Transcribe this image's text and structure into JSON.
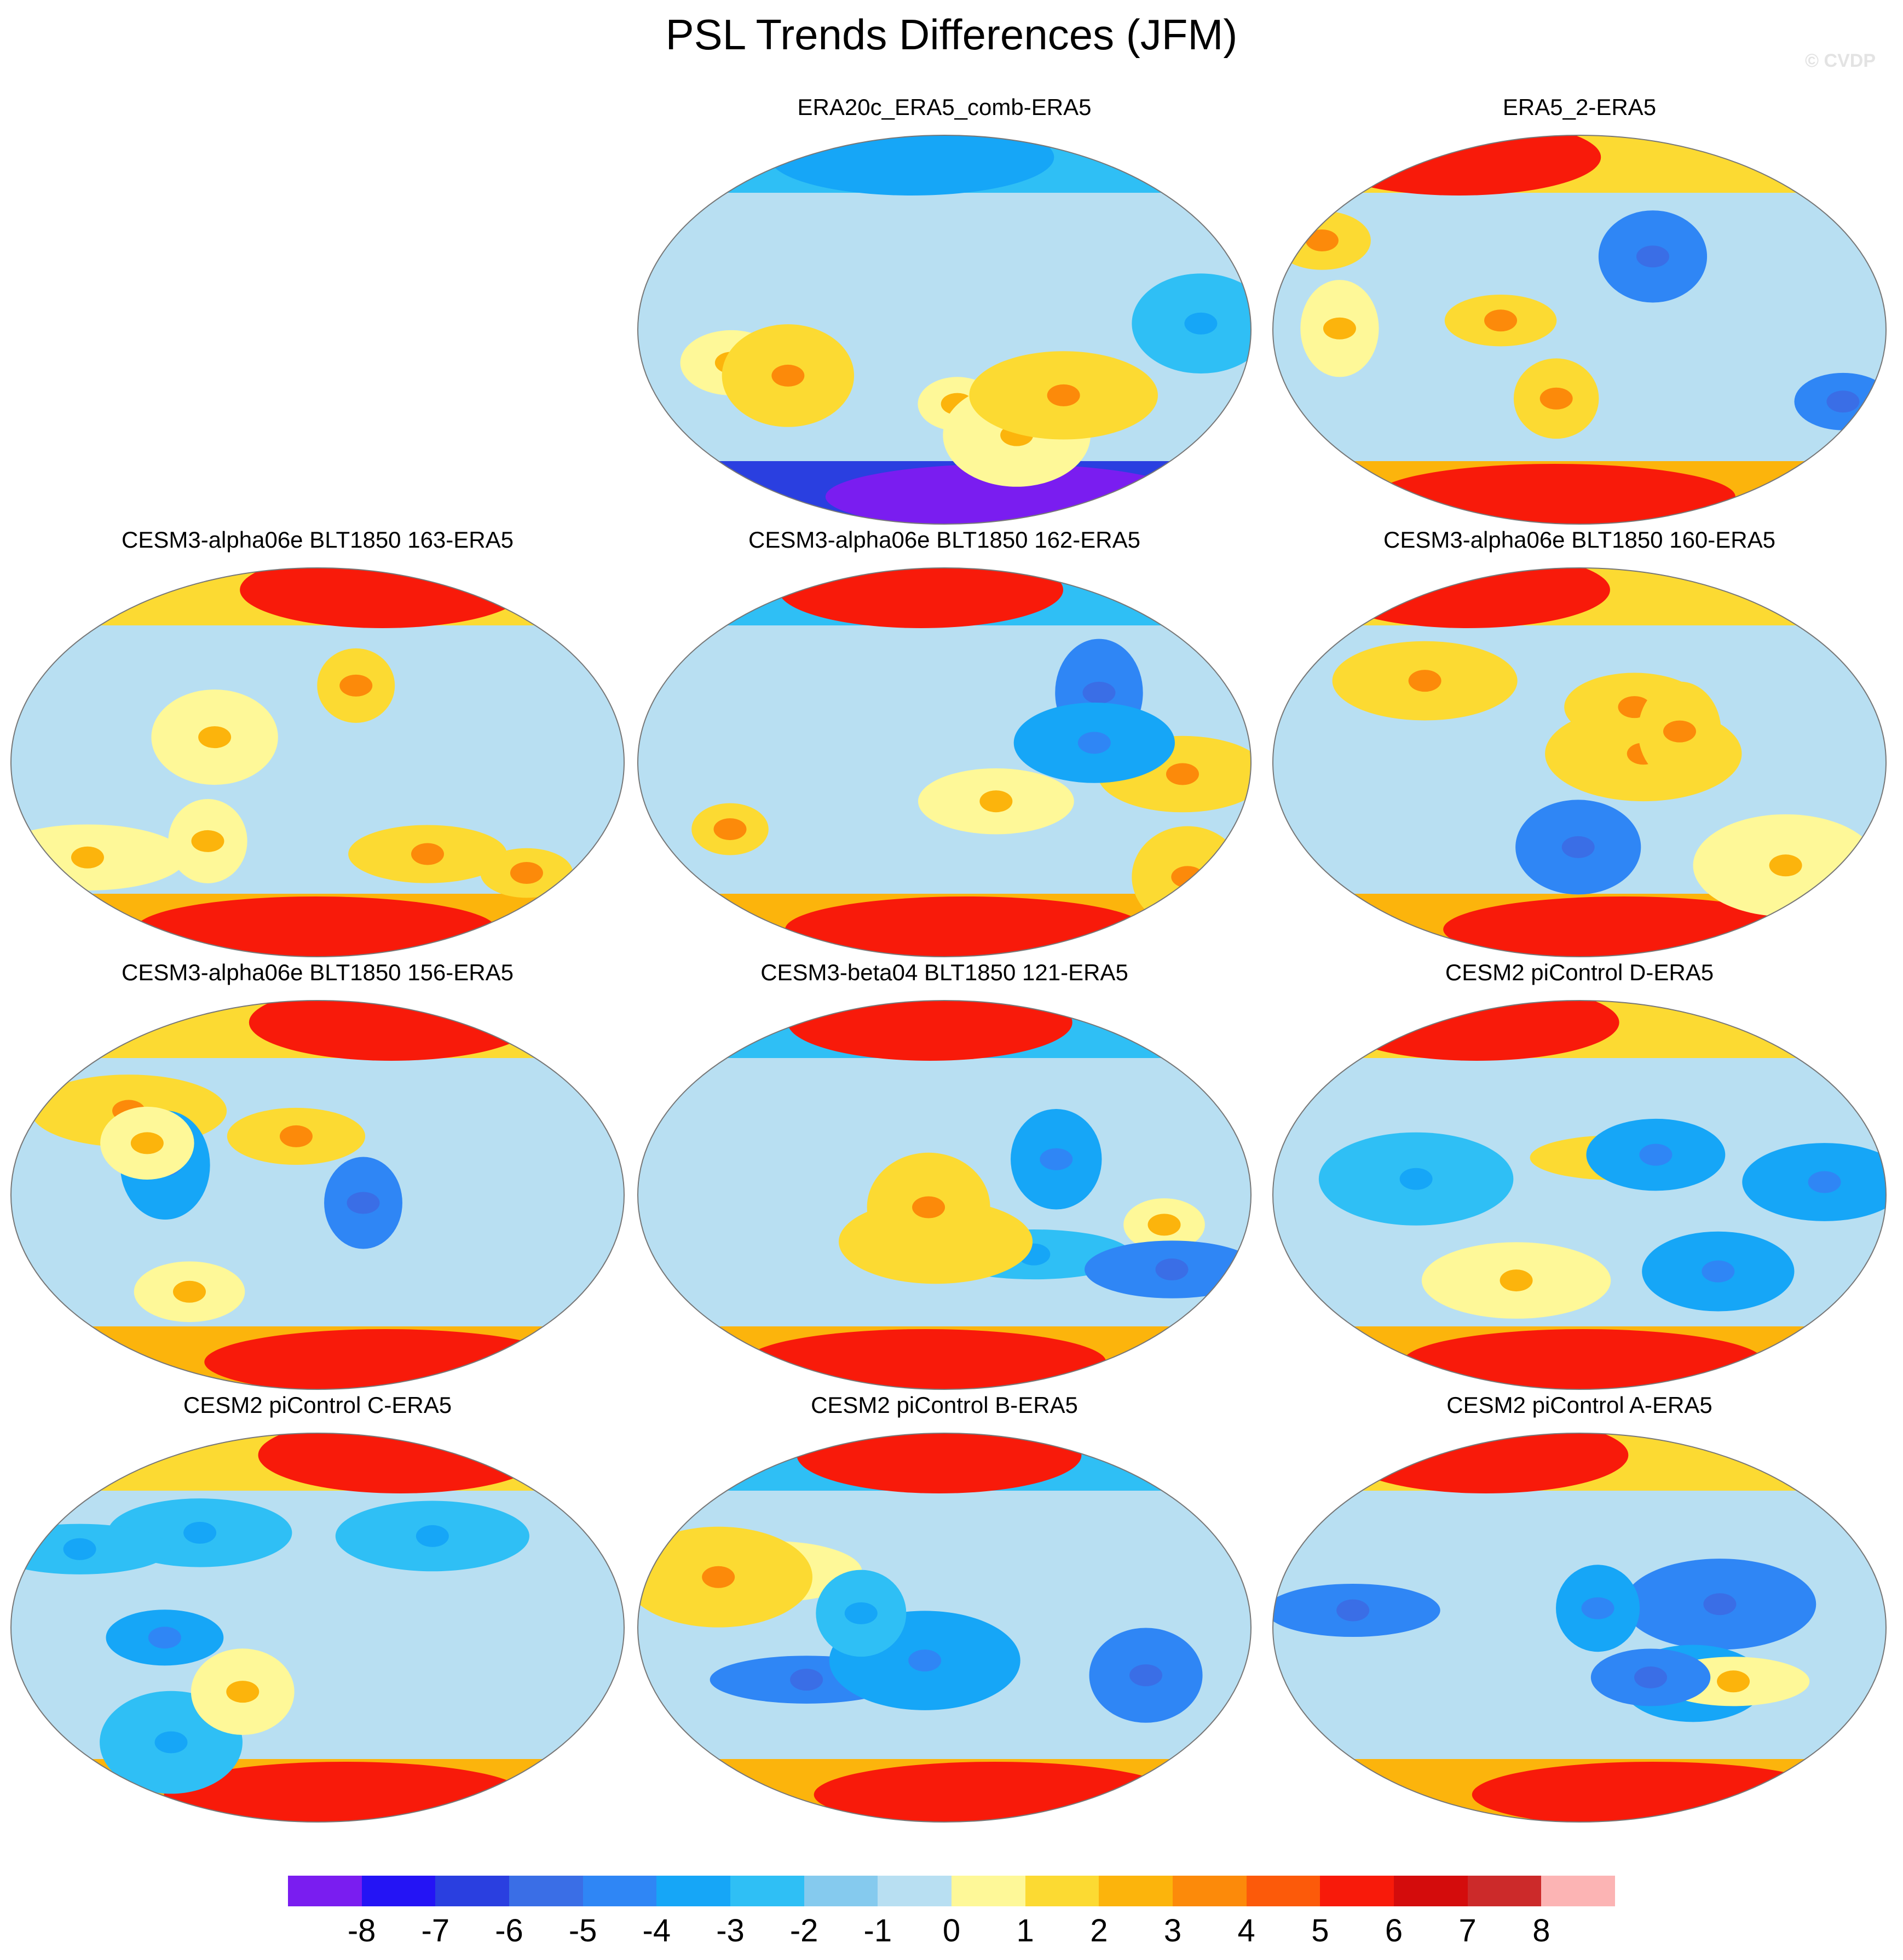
{
  "title": "PSL Trends Differences (JFM)",
  "credit": "© CVDP",
  "panels": [
    {
      "label": "ERA20c_ERA5_comb-ERA5"
    },
    {
      "label": "ERA5_2-ERA5"
    },
    {
      "label": "CESM3-alpha06e BLT1850 163-ERA5"
    },
    {
      "label": "CESM3-alpha06e BLT1850 162-ERA5"
    },
    {
      "label": "CESM3-alpha06e BLT1850 160-ERA5"
    },
    {
      "label": "CESM3-alpha06e BLT1850 156-ERA5"
    },
    {
      "label": "CESM3-beta04 BLT1850 121-ERA5"
    },
    {
      "label": "CESM2 piControl D-ERA5"
    },
    {
      "label": "CESM2 piControl C-ERA5"
    },
    {
      "label": "CESM2 piControl B-ERA5"
    },
    {
      "label": "CESM2 piControl A-ERA5"
    }
  ],
  "colorbar": {
    "colors": [
      "#7a1df0",
      "#2414f5",
      "#2a3fe0",
      "#3a6ee6",
      "#2f86f5",
      "#16a6f7",
      "#2fbff5",
      "#85caee",
      "#b8dff2",
      "#fef898",
      "#fcda32",
      "#fcb40c",
      "#fc8a0a",
      "#fc5a0a",
      "#f81a0a",
      "#d40c0c",
      "#cc2a2a",
      "#fcb4b4"
    ],
    "ticks": [
      "-8",
      "-7",
      "-6",
      "-5",
      "-4",
      "-3",
      "-2",
      "-1",
      "0",
      "1",
      "2",
      "3",
      "4",
      "5",
      "6",
      "7",
      "8"
    ]
  },
  "chart_data": {
    "type": "heatmap",
    "title": "PSL Trends Differences (JFM)",
    "projection": "Robinson (global, Pacific-centered)",
    "levels": [
      -8,
      -7,
      -6,
      -5,
      -4,
      -3,
      -2,
      -1,
      0,
      1,
      2,
      3,
      4,
      5,
      6,
      7,
      8
    ],
    "panels": [
      "ERA20c_ERA5_comb-ERA5",
      "ERA5_2-ERA5",
      "CESM3-alpha06e BLT1850 163-ERA5",
      "CESM3-alpha06e BLT1850 162-ERA5",
      "CESM3-alpha06e BLT1850 160-ERA5",
      "CESM3-alpha06e BLT1850 156-ERA5",
      "CESM3-beta04 BLT1850 121-ERA5",
      "CESM2 piControl D-ERA5",
      "CESM2 piControl C-ERA5",
      "CESM2 piControl B-ERA5",
      "CESM2 piControl A-ERA5"
    ]
  }
}
